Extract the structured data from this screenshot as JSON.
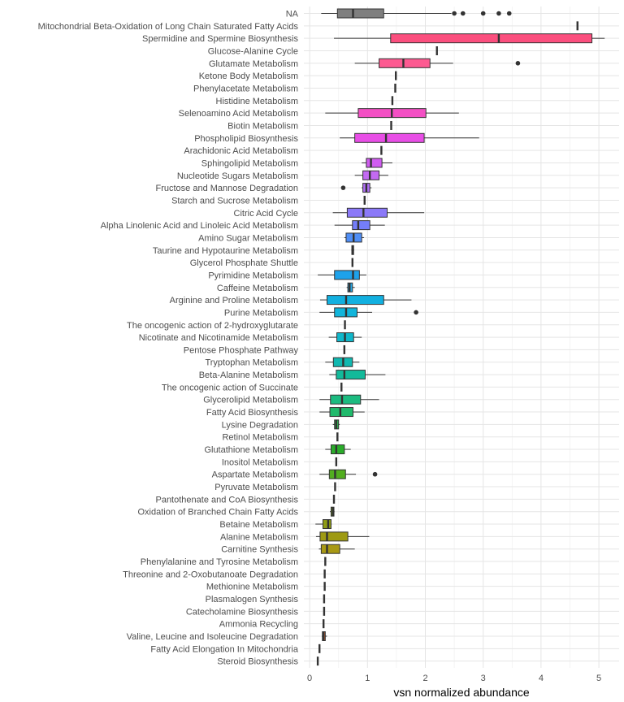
{
  "chart_data": {
    "type": "boxplot",
    "orientation": "horizontal",
    "xlabel": "vsn normalized abundance",
    "ylabel": "",
    "xlim": [
      -0.1,
      5.35
    ],
    "xticks": [
      0,
      1,
      2,
      3,
      4,
      5
    ],
    "grid": true,
    "legend": "none",
    "series": [
      {
        "name": "NA",
        "color": "#7f7f7f",
        "min": 0.2,
        "q1": 0.48,
        "median": 0.75,
        "q3": 1.28,
        "max": 2.45,
        "outliers": [
          2.5,
          2.65,
          3.0,
          3.27,
          3.45
        ]
      },
      {
        "name": "Mitochondrial Beta-Oxidation of Long Chain Saturated Fatty Acids",
        "color": "#f8766d",
        "min": 4.63,
        "q1": 4.63,
        "median": 4.63,
        "q3": 4.63,
        "max": 4.63,
        "outliers": []
      },
      {
        "name": "Spermidine and Spermine Biosynthesis",
        "color": "#fb4f7e",
        "min": 0.42,
        "q1": 1.4,
        "median": 3.27,
        "q3": 4.88,
        "max": 5.1,
        "outliers": []
      },
      {
        "name": "Glucose-Alanine Cycle",
        "color": "#f8766d",
        "min": 2.2,
        "q1": 2.2,
        "median": 2.2,
        "q3": 2.2,
        "max": 2.2,
        "outliers": []
      },
      {
        "name": "Glutamate Metabolism",
        "color": "#fd5a91",
        "min": 0.78,
        "q1": 1.2,
        "median": 1.62,
        "q3": 2.08,
        "max": 2.48,
        "outliers": [
          3.6
        ]
      },
      {
        "name": "Ketone Body Metabolism",
        "color": "#f8766d",
        "min": 1.49,
        "q1": 1.49,
        "median": 1.49,
        "q3": 1.49,
        "max": 1.49,
        "outliers": []
      },
      {
        "name": "Phenylacetate Metabolism",
        "color": "#f8766d",
        "min": 1.48,
        "q1": 1.48,
        "median": 1.48,
        "q3": 1.48,
        "max": 1.48,
        "outliers": []
      },
      {
        "name": "Histidine Metabolism",
        "color": "#f8766d",
        "min": 1.43,
        "q1": 1.43,
        "median": 1.43,
        "q3": 1.43,
        "max": 1.43,
        "outliers": []
      },
      {
        "name": "Selenoamino Acid Metabolism",
        "color": "#f34fc4",
        "min": 0.27,
        "q1": 0.84,
        "median": 1.42,
        "q3": 2.01,
        "max": 2.58,
        "outliers": []
      },
      {
        "name": "Biotin Metabolism",
        "color": "#f8766d",
        "min": 1.41,
        "q1": 1.41,
        "median": 1.41,
        "q3": 1.41,
        "max": 1.41,
        "outliers": []
      },
      {
        "name": "Phospholipid Biosynthesis",
        "color": "#e84ee6",
        "min": 0.52,
        "q1": 0.78,
        "median": 1.32,
        "q3": 1.98,
        "max": 2.93,
        "outliers": []
      },
      {
        "name": "Arachidonic Acid Metabolism",
        "color": "#f8766d",
        "min": 1.24,
        "q1": 1.24,
        "median": 1.24,
        "q3": 1.24,
        "max": 1.24,
        "outliers": []
      },
      {
        "name": "Sphingolipid Metabolism",
        "color": "#d05cf0",
        "min": 0.9,
        "q1": 0.98,
        "median": 1.06,
        "q3": 1.25,
        "max": 1.43,
        "outliers": []
      },
      {
        "name": "Nucleotide Sugars Metabolism",
        "color": "#c36af2",
        "min": 0.78,
        "q1": 0.92,
        "median": 1.04,
        "q3": 1.2,
        "max": 1.36,
        "outliers": []
      },
      {
        "name": "Fructose and Mannose Degradation",
        "color": "#b06ff5",
        "min": 0.9,
        "q1": 0.92,
        "median": 0.98,
        "q3": 1.04,
        "max": 1.07,
        "outliers": [
          0.58
        ]
      },
      {
        "name": "Starch and Sucrose Metabolism",
        "color": "#f8766d",
        "min": 0.95,
        "q1": 0.95,
        "median": 0.95,
        "q3": 0.95,
        "max": 0.95,
        "outliers": []
      },
      {
        "name": "Citric Acid Cycle",
        "color": "#8b79f8",
        "min": 0.4,
        "q1": 0.65,
        "median": 0.93,
        "q3": 1.34,
        "max": 1.98,
        "outliers": []
      },
      {
        "name": "Alpha Linolenic Acid and Linoleic Acid Metabolism",
        "color": "#747ef9",
        "min": 0.43,
        "q1": 0.74,
        "median": 0.84,
        "q3": 1.04,
        "max": 1.3,
        "outliers": []
      },
      {
        "name": "Amino Sugar Metabolism",
        "color": "#4f8ef6",
        "min": 0.6,
        "q1": 0.63,
        "median": 0.76,
        "q3": 0.9,
        "max": 0.94,
        "outliers": []
      },
      {
        "name": "Taurine and Hypotaurine Metabolism",
        "color": "#f8766d",
        "min": 0.72,
        "q1": 0.73,
        "median": 0.74,
        "q3": 0.76,
        "max": 0.77,
        "outliers": []
      },
      {
        "name": "Glycerol Phosphate Shuttle",
        "color": "#f8766d",
        "min": 0.74,
        "q1": 0.74,
        "median": 0.74,
        "q3": 0.74,
        "max": 0.74,
        "outliers": []
      },
      {
        "name": "Pyrimidine Metabolism",
        "color": "#1ea2ea",
        "min": 0.14,
        "q1": 0.43,
        "median": 0.75,
        "q3": 0.86,
        "max": 0.98,
        "outliers": []
      },
      {
        "name": "Caffeine Metabolism",
        "color": "#28a8e5",
        "min": 0.64,
        "q1": 0.66,
        "median": 0.69,
        "q3": 0.74,
        "max": 0.78,
        "outliers": []
      },
      {
        "name": "Arginine and Proline Metabolism",
        "color": "#12b0e0",
        "min": 0.18,
        "q1": 0.3,
        "median": 0.63,
        "q3": 1.28,
        "max": 1.76,
        "outliers": []
      },
      {
        "name": "Purine Metabolism",
        "color": "#12b5db",
        "min": 0.17,
        "q1": 0.43,
        "median": 0.63,
        "q3": 0.82,
        "max": 1.08,
        "outliers": [
          1.84
        ]
      },
      {
        "name": "The oncogenic action of 2-hydroxyglutarate",
        "color": "#f8766d",
        "min": 0.61,
        "q1": 0.61,
        "median": 0.61,
        "q3": 0.61,
        "max": 0.61,
        "outliers": []
      },
      {
        "name": "Nicotinate and Nicotinamide Metabolism",
        "color": "#10b7ca",
        "min": 0.33,
        "q1": 0.47,
        "median": 0.61,
        "q3": 0.76,
        "max": 0.9,
        "outliers": []
      },
      {
        "name": "Pentose Phosphate Pathway",
        "color": "#f8766d",
        "min": 0.6,
        "q1": 0.6,
        "median": 0.6,
        "q3": 0.6,
        "max": 0.6,
        "outliers": []
      },
      {
        "name": "Tryptophan Metabolism",
        "color": "#10b8b0",
        "min": 0.27,
        "q1": 0.41,
        "median": 0.58,
        "q3": 0.74,
        "max": 0.86,
        "outliers": []
      },
      {
        "name": "Beta-Alanine Metabolism",
        "color": "#12ba9a",
        "min": 0.34,
        "q1": 0.46,
        "median": 0.6,
        "q3": 0.96,
        "max": 1.31,
        "outliers": []
      },
      {
        "name": "The oncogenic action of Succinate",
        "color": "#f8766d",
        "min": 0.55,
        "q1": 0.55,
        "median": 0.55,
        "q3": 0.55,
        "max": 0.55,
        "outliers": []
      },
      {
        "name": "Glycerolipid Metabolism",
        "color": "#1cbb80",
        "min": 0.17,
        "q1": 0.36,
        "median": 0.56,
        "q3": 0.88,
        "max": 1.2,
        "outliers": []
      },
      {
        "name": "Fatty Acid Biosynthesis",
        "color": "#21ba6c",
        "min": 0.17,
        "q1": 0.35,
        "median": 0.53,
        "q3": 0.75,
        "max": 0.95,
        "outliers": []
      },
      {
        "name": "Lysine Degradation",
        "color": "#2eb851",
        "min": 0.4,
        "q1": 0.43,
        "median": 0.46,
        "q3": 0.5,
        "max": 0.52,
        "outliers": []
      },
      {
        "name": "Retinol Metabolism",
        "color": "#f8766d",
        "min": 0.48,
        "q1": 0.48,
        "median": 0.48,
        "q3": 0.48,
        "max": 0.48,
        "outliers": []
      },
      {
        "name": "Glutathione Metabolism",
        "color": "#2bac2b",
        "min": 0.27,
        "q1": 0.37,
        "median": 0.46,
        "q3": 0.6,
        "max": 0.71,
        "outliers": []
      },
      {
        "name": "Inositol Metabolism",
        "color": "#f8766d",
        "min": 0.46,
        "q1": 0.46,
        "median": 0.46,
        "q3": 0.46,
        "max": 0.46,
        "outliers": []
      },
      {
        "name": "Aspartate Metabolism",
        "color": "#52ae1f",
        "min": 0.17,
        "q1": 0.34,
        "median": 0.44,
        "q3": 0.62,
        "max": 0.8,
        "outliers": [
          1.13
        ]
      },
      {
        "name": "Pyruvate Metabolism",
        "color": "#f8766d",
        "min": 0.44,
        "q1": 0.44,
        "median": 0.44,
        "q3": 0.44,
        "max": 0.44,
        "outliers": []
      },
      {
        "name": "Pantothenate and CoA Biosynthesis",
        "color": "#f8766d",
        "min": 0.42,
        "q1": 0.42,
        "median": 0.42,
        "q3": 0.42,
        "max": 0.42,
        "outliers": []
      },
      {
        "name": "Oxidation of Branched Chain Fatty Acids",
        "color": "#7ba21c",
        "min": 0.35,
        "q1": 0.37,
        "median": 0.4,
        "q3": 0.42,
        "max": 0.43,
        "outliers": []
      },
      {
        "name": "Betaine Metabolism",
        "color": "#8f9c16",
        "min": 0.1,
        "q1": 0.23,
        "median": 0.32,
        "q3": 0.37,
        "max": 0.38,
        "outliers": []
      },
      {
        "name": "Alanine Metabolism",
        "color": "#9e9a13",
        "min": 0.11,
        "q1": 0.18,
        "median": 0.3,
        "q3": 0.66,
        "max": 1.03,
        "outliers": []
      },
      {
        "name": "Carnitine Synthesis",
        "color": "#a89914",
        "min": 0.16,
        "q1": 0.2,
        "median": 0.3,
        "q3": 0.52,
        "max": 0.78,
        "outliers": []
      },
      {
        "name": "Phenylalanine and Tyrosine Metabolism",
        "color": "#f8766d",
        "min": 0.27,
        "q1": 0.27,
        "median": 0.27,
        "q3": 0.27,
        "max": 0.27,
        "outliers": []
      },
      {
        "name": "Threonine and 2-Oxobutanoate Degradation",
        "color": "#f8766d",
        "min": 0.26,
        "q1": 0.26,
        "median": 0.26,
        "q3": 0.26,
        "max": 0.26,
        "outliers": []
      },
      {
        "name": "Methionine Metabolism",
        "color": "#f8766d",
        "min": 0.26,
        "q1": 0.26,
        "median": 0.26,
        "q3": 0.26,
        "max": 0.26,
        "outliers": []
      },
      {
        "name": "Plasmalogen Synthesis",
        "color": "#f8766d",
        "min": 0.25,
        "q1": 0.25,
        "median": 0.25,
        "q3": 0.25,
        "max": 0.25,
        "outliers": []
      },
      {
        "name": "Catecholamine Biosynthesis",
        "color": "#f8766d",
        "min": 0.25,
        "q1": 0.25,
        "median": 0.25,
        "q3": 0.25,
        "max": 0.25,
        "outliers": []
      },
      {
        "name": "Ammonia Recycling",
        "color": "#f8766d",
        "min": 0.24,
        "q1": 0.24,
        "median": 0.24,
        "q3": 0.24,
        "max": 0.24,
        "outliers": []
      },
      {
        "name": "Valine, Leucine and Isoleucine Degradation",
        "color": "#e0642a",
        "min": 0.21,
        "q1": 0.22,
        "median": 0.24,
        "q3": 0.27,
        "max": 0.3,
        "outliers": []
      },
      {
        "name": "Fatty Acid Elongation In Mitochondria",
        "color": "#f8766d",
        "min": 0.17,
        "q1": 0.17,
        "median": 0.17,
        "q3": 0.17,
        "max": 0.17,
        "outliers": []
      },
      {
        "name": "Steroid Biosynthesis",
        "color": "#f8766d",
        "min": 0.14,
        "q1": 0.14,
        "median": 0.14,
        "q3": 0.14,
        "max": 0.14,
        "outliers": []
      }
    ]
  }
}
